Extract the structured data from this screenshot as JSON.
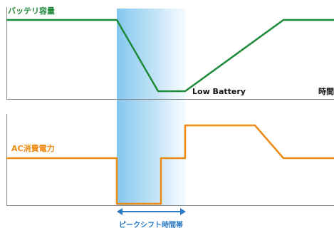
{
  "battery_label": "バッテリ容量",
  "low_battery_label": "Low Battery",
  "time_label": "時間",
  "ac_label": "AC消費電力",
  "peak_shift_label": "ピークシフト時間帯",
  "colors": {
    "battery_line": "#1d8a3a",
    "ac_line": "#ee8a12",
    "peak_band": "#7cc4ee",
    "arrow": "#2a7ac4",
    "axis": "#8a8a8a"
  }
}
